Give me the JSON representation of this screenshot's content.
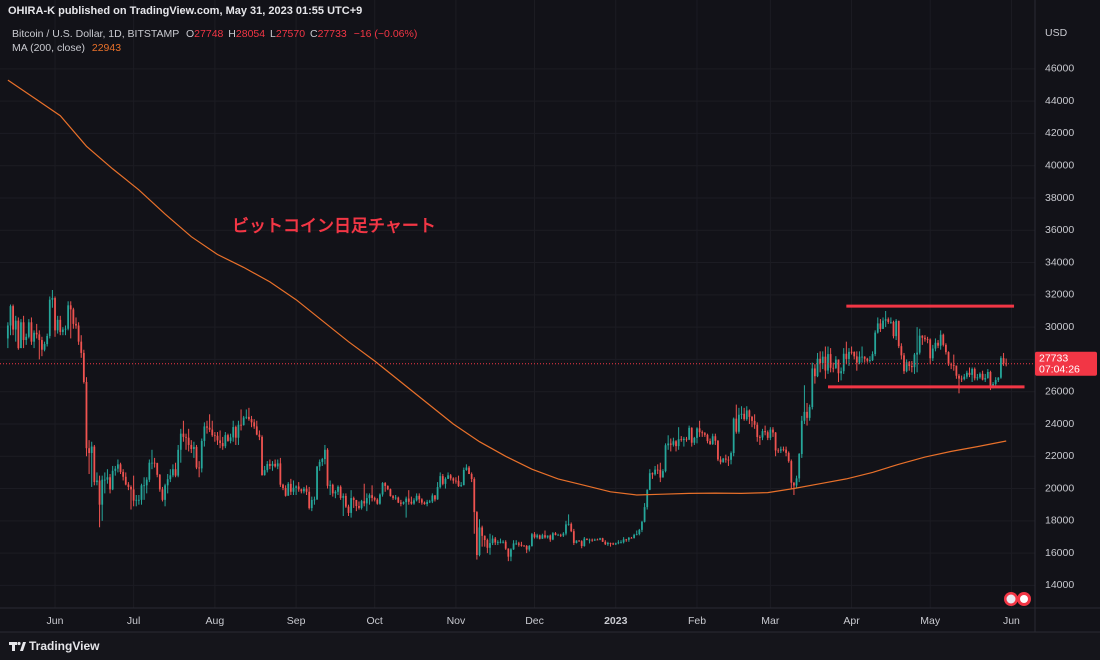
{
  "header": "OHIRA-K published on TradingView.com, May 31, 2023 01:55 UTC+9",
  "footer": "TradingView",
  "chart_data": {
    "type": "candlestick",
    "symbol": "Bitcoin / U.S. Dollar, 1D, BITSTAMP",
    "ohlc_labels": [
      "O",
      "H",
      "L",
      "C"
    ],
    "change": "−16 (−0.06%)",
    "currency": "USD",
    "annotation": "ビットコイン日足チャート",
    "countdown": "07:04:26",
    "up_color": "#26a69a",
    "down_color": "#ef5350",
    "price_line_color": "#f23645",
    "xlim": [
      -3,
      392
    ],
    "xticks": [
      {
        "value": 18,
        "label": "Jun"
      },
      {
        "value": 48,
        "label": "Jul"
      },
      {
        "value": 79,
        "label": "Aug"
      },
      {
        "value": 110,
        "label": "Sep"
      },
      {
        "value": 140,
        "label": "Oct"
      },
      {
        "value": 171,
        "label": "Nov"
      },
      {
        "value": 201,
        "label": "Dec"
      },
      {
        "value": 232,
        "label": "2023"
      },
      {
        "value": 263,
        "label": "Feb"
      },
      {
        "value": 291,
        "label": "Mar"
      },
      {
        "value": 322,
        "label": "Apr"
      },
      {
        "value": 352,
        "label": "May"
      },
      {
        "value": 383,
        "label": "Jun"
      }
    ],
    "ylim": [
      12600,
      49150
    ],
    "yticks": [
      14000,
      16000,
      18000,
      20000,
      22000,
      24000,
      26000,
      28000,
      30000,
      32000,
      34000,
      36000,
      38000,
      40000,
      42000,
      44000,
      46000
    ],
    "grid": true,
    "ma": {
      "name": "MA (200, close)",
      "color": "#e8702a",
      "x": [
        0,
        10,
        20,
        30,
        40,
        50,
        60,
        70,
        80,
        90,
        100,
        110,
        120,
        130,
        140,
        150,
        160,
        170,
        180,
        190,
        200,
        210,
        220,
        230,
        240,
        250,
        260,
        270,
        280,
        290,
        300,
        310,
        320,
        330,
        340,
        350,
        360,
        370,
        381
      ],
      "values": [
        45300,
        44200,
        43100,
        41200,
        39800,
        38500,
        37000,
        35600,
        34500,
        33700,
        32800,
        31700,
        30400,
        29100,
        27900,
        26600,
        25300,
        24000,
        22900,
        22000,
        21200,
        20600,
        20200,
        19800,
        19600,
        19650,
        19700,
        19720,
        19700,
        19750,
        20000,
        20300,
        20600,
        21000,
        21500,
        21950,
        22300,
        22600,
        22943
      ]
    },
    "hlines": [
      {
        "price": 31300,
        "from": 320,
        "to": 384,
        "color": "#f23645"
      },
      {
        "price": 26300,
        "from": 313,
        "to": 388,
        "color": "#f23645"
      }
    ],
    "first_open": 29300,
    "close": [
      30100,
      31300,
      29850,
      30400,
      28700,
      30300,
      29200,
      29400,
      30300,
      29100,
      29650,
      29550,
      29200,
      28600,
      28950,
      29450,
      31700,
      31800,
      29800,
      30450,
      29700,
      29850,
      29900,
      31350,
      31100,
      30200,
      30100,
      29100,
      28400,
      26600,
      22500,
      22200,
      22600,
      20400,
      20500,
      19000,
      20550,
      20550,
      20700,
      19950,
      21100,
      21230,
      21500,
      21030,
      20730,
      20250,
      20100,
      19950,
      19250,
      19300,
      19300,
      20200,
      20200,
      20550,
      21600,
      21600,
      21580,
      20850,
      19950,
      19300,
      20200,
      20580,
      20820,
      21200,
      20800,
      22400,
      23400,
      23200,
      23150,
      22700,
      22450,
      22580,
      21300,
      21250,
      22950,
      23850,
      23770,
      23650,
      23300,
      23270,
      22980,
      22820,
      22620,
      23310,
      22950,
      23170,
      23810,
      23150,
      23950,
      23930,
      24400,
      24440,
      24300,
      24100,
      23850,
      23340,
      23200,
      20830,
      21140,
      21520,
      21400,
      21530,
      21370,
      21560,
      20240,
      20030,
      19550,
      20290,
      19800,
      20050,
      20130,
      19950,
      19830,
      19990,
      19800,
      18790,
      19290,
      19320,
      21360,
      21650,
      21830,
      22400,
      20170,
      20230,
      19700,
      19800,
      20110,
      19420,
      19540,
      18880,
      18490,
      19410,
      19290,
      18920,
      18800,
      19220,
      19080,
      19410,
      19590,
      19420,
      19310,
      19060,
      19630,
      20340,
      20160,
      19960,
      19530,
      19420,
      19440,
      19130,
      19060,
      19160,
      19380,
      19180,
      19070,
      19270,
      19550,
      19330,
      19130,
      19040,
      19170,
      19200,
      19570,
      19330,
      20090,
      20770,
      20290,
      20600,
      20820,
      20630,
      20490,
      20480,
      20150,
      20210,
      21150,
      21300,
      20900,
      20590,
      18540,
      15880,
      17590,
      17070,
      16810,
      16330,
      16620,
      16900,
      16660,
      16690,
      16700,
      16700,
      16280,
      15780,
      16230,
      16600,
      16600,
      16520,
      16460,
      16440,
      16220,
      16440,
      17170,
      16980,
      17100,
      16890,
      17110,
      16970,
      17090,
      16840,
      17230,
      17130,
      17130,
      17090,
      17210,
      17780,
      17810,
      17360,
      16630,
      16780,
      16740,
      16440,
      16900,
      16820,
      16830,
      16780,
      16840,
      16830,
      16920,
      16700,
      16550,
      16630,
      16600,
      16540,
      16610,
      16670,
      16670,
      16850,
      16830,
      16950,
      16940,
      17130,
      17180,
      17440,
      17940,
      18850,
      19930,
      20950,
      20880,
      21170,
      21160,
      20680,
      21080,
      22680,
      22790,
      22710,
      22930,
      22630,
      23060,
      23010,
      23080,
      23030,
      23760,
      22840,
      23140,
      23730,
      23490,
      23430,
      23330,
      22940,
      22760,
      23240,
      22960,
      21800,
      21630,
      21860,
      21790,
      21780,
      22200,
      24330,
      23520,
      24570,
      24630,
      24300,
      24840,
      24440,
      24190,
      23950,
      23190,
      23160,
      23560,
      23490,
      23140,
      23650,
      23470,
      22360,
      22350,
      22430,
      22410,
      22210,
      21700,
      20360,
      20190,
      20630,
      22140,
      24200,
      24750,
      24380,
      25050,
      27440,
      26960,
      28040,
      27770,
      28170,
      27310,
      28330,
      27480,
      27470,
      27990,
      27140,
      27270,
      28350,
      28030,
      28470,
      28460,
      28190,
      27800,
      28170,
      28170,
      28040,
      27920,
      27950,
      28330,
      29660,
      30230,
      29890,
      30400,
      30490,
      30320,
      30320,
      29440,
      30390,
      28820,
      28250,
      27270,
      27820,
      27590,
      27520,
      28300,
      28420,
      29470,
      29340,
      29250,
      29230,
      28070,
      28670,
      29030,
      28850,
      29530,
      28900,
      28450,
      27690,
      27650,
      27620,
      26990,
      26810,
      26780,
      26930,
      27170,
      27040,
      27410,
      26830,
      26890,
      27110,
      26750,
      26850,
      27220,
      26330,
      26480,
      26720,
      26870,
      28080,
      27748,
      27733
    ],
    "high": [
      30300,
      31400,
      31400,
      30700,
      30600,
      30500,
      30700,
      29600,
      30500,
      30600,
      29800,
      30200,
      29800,
      29400,
      29100,
      29600,
      31900,
      32300,
      31900,
      30700,
      30700,
      30000,
      30100,
      31600,
      31600,
      31200,
      30600,
      30300,
      29500,
      28600,
      26900,
      23000,
      22900,
      22700,
      21000,
      20800,
      20800,
      21000,
      21200,
      20900,
      21400,
      21400,
      21800,
      21600,
      21200,
      21000,
      20400,
      20200,
      20800,
      19600,
      19600,
      20300,
      20700,
      20700,
      21800,
      22400,
      21900,
      21600,
      20900,
      20100,
      20300,
      20900,
      21200,
      21500,
      21600,
      22700,
      23700,
      24200,
      23400,
      23700,
      23000,
      22900,
      22700,
      21700,
      23100,
      24100,
      24200,
      24600,
      24200,
      23500,
      23500,
      23600,
      23200,
      23500,
      23400,
      23400,
      24200,
      23900,
      24200,
      24900,
      24500,
      24900,
      25000,
      24500,
      24300,
      24200,
      23600,
      23300,
      21400,
      21700,
      21800,
      21700,
      21800,
      21800,
      21900,
      20300,
      20200,
      20400,
      20600,
      20500,
      20200,
      20400,
      20000,
      20100,
      20200,
      20100,
      19500,
      19500,
      21400,
      21800,
      21900,
      22700,
      22500,
      20500,
      20300,
      19900,
      20200,
      20200,
      19700,
      19700,
      19000,
      19900,
      19500,
      19300,
      19200,
      19300,
      20300,
      19700,
      19700,
      20200,
      19500,
      19400,
      19700,
      20400,
      20400,
      20200,
      20000,
      19600,
      19600,
      19500,
      19300,
      19200,
      19500,
      19900,
      19500,
      19400,
      19700,
      19700,
      19400,
      19200,
      19300,
      19300,
      19700,
      19600,
      20400,
      21000,
      20900,
      20700,
      21000,
      20900,
      20700,
      20700,
      20800,
      20400,
      21300,
      21500,
      21400,
      21000,
      20700,
      18600,
      18100,
      17700,
      17100,
      16900,
      17200,
      17100,
      17000,
      16800,
      16900,
      16800,
      16800,
      16300,
      16300,
      16800,
      16800,
      16700,
      16700,
      16500,
      16500,
      16500,
      17250,
      17300,
      17200,
      17150,
      17200,
      17400,
      17100,
      17150,
      17300,
      17300,
      17200,
      17200,
      17300,
      18000,
      18400,
      17900,
      17500,
      16800,
      16800,
      16800,
      17000,
      16900,
      16900,
      16900,
      16900,
      16900,
      16950,
      16950,
      16800,
      16700,
      16650,
      16650,
      16650,
      16800,
      16800,
      16990,
      16880,
      17000,
      17000,
      17200,
      17400,
      17500,
      18000,
      19100,
      19950,
      21200,
      21000,
      21400,
      21500,
      21600,
      21200,
      22800,
      23300,
      23100,
      23150,
      23000,
      23800,
      23250,
      23200,
      23200,
      23900,
      23800,
      23200,
      23800,
      24200,
      23600,
      23500,
      23400,
      23100,
      23400,
      23400,
      23000,
      22000,
      21900,
      22100,
      22000,
      22300,
      24400,
      25200,
      25000,
      25100,
      25000,
      25100,
      24900,
      24500,
      24600,
      24100,
      23300,
      23700,
      23900,
      23600,
      23800,
      23800,
      23500,
      22500,
      22600,
      22600,
      22600,
      22300,
      21800,
      20400,
      20800,
      22200,
      24500,
      26400,
      25300,
      25200,
      27800,
      27700,
      28400,
      28500,
      28500,
      28800,
      28800,
      28700,
      27800,
      28200,
      28000,
      27500,
      28700,
      29100,
      28700,
      28800,
      28500,
      28500,
      28500,
      28800,
      28200,
      28100,
      28200,
      28500,
      29800,
      30600,
      30500,
      30600,
      31000,
      30600,
      30600,
      30400,
      30500,
      30400,
      29000,
      28400,
      28000,
      27900,
      27900,
      28400,
      30000,
      29900,
      29500,
      29500,
      29400,
      29300,
      28900,
      29300,
      29200,
      29800,
      29600,
      29000,
      28500,
      27800,
      28300,
      27600,
      27100,
      27000,
      27100,
      27300,
      27500,
      27500,
      27500,
      27100,
      27200,
      27300,
      27100,
      27400,
      27300,
      26600,
      26900,
      26900,
      28200,
      28400,
      28054
    ],
    "low": [
      28700,
      29500,
      29500,
      29100,
      28600,
      28700,
      28700,
      28900,
      29300,
      28900,
      28700,
      29300,
      28000,
      28200,
      28500,
      28800,
      29300,
      31200,
      29400,
      29600,
      29500,
      29500,
      29500,
      29800,
      29300,
      29900,
      29900,
      28900,
      28100,
      26500,
      22000,
      20900,
      20100,
      20200,
      20200,
      17600,
      18000,
      19700,
      20300,
      19700,
      19900,
      20800,
      21000,
      20900,
      20500,
      20200,
      19900,
      18700,
      18900,
      18900,
      19000,
      19000,
      19300,
      19700,
      20400,
      21200,
      21300,
      20700,
      19800,
      19200,
      18900,
      19700,
      20400,
      20700,
      20700,
      20700,
      21600,
      22900,
      22400,
      22300,
      22200,
      21900,
      21200,
      20700,
      21000,
      22600,
      23400,
      23500,
      23200,
      22900,
      22700,
      22500,
      22400,
      22500,
      22900,
      22800,
      22900,
      22700,
      22700,
      23600,
      23900,
      24300,
      24200,
      23800,
      23700,
      23300,
      23000,
      20800,
      20800,
      21000,
      21200,
      21100,
      21300,
      21200,
      20100,
      19900,
      19500,
      19600,
      19600,
      19600,
      19600,
      19800,
      19700,
      19700,
      19600,
      18700,
      18600,
      19000,
      19300,
      21100,
      21400,
      21500,
      20000,
      19600,
      19500,
      19400,
      19600,
      19300,
      18300,
      18800,
      18300,
      18200,
      18800,
      18600,
      18700,
      18700,
      18900,
      18600,
      19000,
      19200,
      19200,
      19000,
      19000,
      19500,
      19800,
      19900,
      19500,
      19300,
      19300,
      19100,
      18900,
      19000,
      18200,
      19000,
      19000,
      19000,
      19200,
      19100,
      19000,
      19000,
      18900,
      19100,
      19100,
      19200,
      19300,
      20000,
      20200,
      20000,
      20600,
      20500,
      20300,
      20300,
      20100,
      20100,
      20200,
      21100,
      20900,
      20400,
      17200,
      15600,
      15800,
      16400,
      16400,
      16000,
      15900,
      16500,
      16500,
      16500,
      16600,
      16600,
      16200,
      15500,
      15500,
      16200,
      16500,
      16400,
      16400,
      16400,
      16000,
      16100,
      16400,
      16900,
      16900,
      16850,
      16880,
      16900,
      16900,
      16700,
      16800,
      17100,
      17100,
      17000,
      17000,
      17100,
      17700,
      17300,
      16500,
      16600,
      16700,
      16300,
      16400,
      16800,
      16600,
      16700,
      16750,
      16800,
      16800,
      16700,
      16500,
      16450,
      16400,
      16500,
      16500,
      16550,
      16600,
      16600,
      16700,
      16700,
      16900,
      16900,
      17100,
      17100,
      17300,
      17900,
      18700,
      19900,
      20600,
      20800,
      20900,
      20400,
      20700,
      21000,
      22400,
      22300,
      22600,
      22300,
      22400,
      22900,
      22600,
      22900,
      23000,
      22600,
      22700,
      22800,
      23200,
      23200,
      23200,
      22800,
      22700,
      22700,
      22700,
      21700,
      21500,
      21600,
      21600,
      21400,
      21500,
      22000,
      23400,
      23400,
      24300,
      24200,
      24200,
      24000,
      23800,
      23700,
      22900,
      22700,
      23000,
      23300,
      23000,
      23000,
      23200,
      22000,
      22200,
      22200,
      22300,
      22000,
      21600,
      20000,
      19600,
      20000,
      20400,
      21900,
      24000,
      23900,
      24200,
      24900,
      26500,
      26900,
      27200,
      27400,
      26800,
      27100,
      27200,
      27200,
      27400,
      26600,
      26700,
      27100,
      27700,
      27600,
      28300,
      28000,
      27300,
      27700,
      27800,
      27800,
      27800,
      27800,
      27900,
      28200,
      29600,
      29700,
      29900,
      30000,
      30200,
      30200,
      29300,
      29200,
      28700,
      28000,
      27100,
      27200,
      27300,
      27200,
      27100,
      27200,
      28300,
      28900,
      29100,
      29000,
      27700,
      27900,
      28500,
      28700,
      28600,
      28800,
      28300,
      27600,
      27400,
      27300,
      26800,
      25900,
      26600,
      26700,
      26800,
      26900,
      26600,
      26700,
      26700,
      26800,
      26700,
      26600,
      26800,
      26100,
      26200,
      26300,
      26600,
      26800,
      27600,
      27570
    ]
  }
}
